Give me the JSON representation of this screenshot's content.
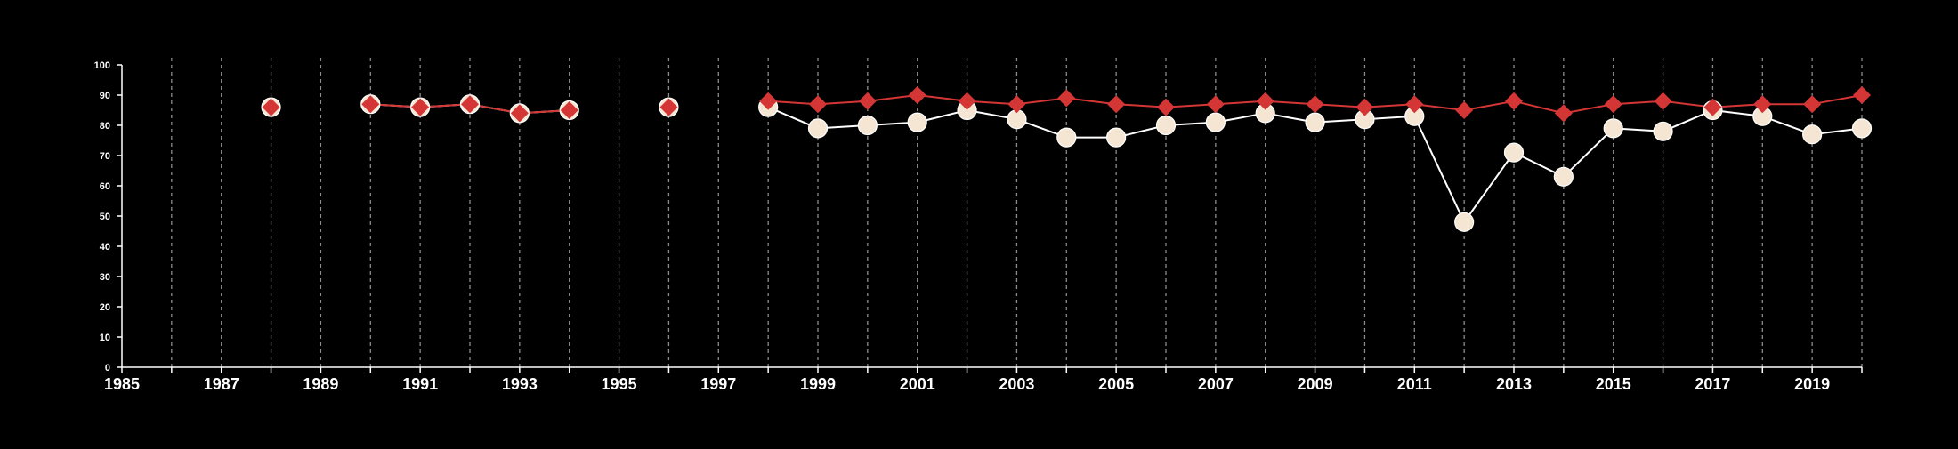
{
  "chart_data": {
    "type": "line",
    "title": "",
    "xlabel": "",
    "ylabel": "",
    "xlim": [
      1985,
      2020
    ],
    "ylim": [
      0,
      100
    ],
    "x_ticks": [
      1985,
      1987,
      1989,
      1991,
      1993,
      1995,
      1997,
      1999,
      2001,
      2003,
      2005,
      2007,
      2009,
      2011,
      2013,
      2015,
      2017,
      2019
    ],
    "y_ticks": [
      0,
      10,
      20,
      30,
      40,
      50,
      60,
      70,
      80,
      90,
      100
    ],
    "x_tick_labels": [
      "1985",
      "1987",
      "1989",
      "1991",
      "1993",
      "1995",
      "1997",
      "1999",
      "2001",
      "2003",
      "2005",
      "2007",
      "2009",
      "2011",
      "2013",
      "2015",
      "2017",
      "2019"
    ],
    "y_tick_labels": [
      "0",
      "10",
      "20",
      "30",
      "40",
      "50",
      "60",
      "70",
      "80",
      "90",
      "100"
    ],
    "vertical_grid": true,
    "vertical_grid_years": [
      1986,
      1987,
      1988,
      1989,
      1990,
      1991,
      1992,
      1993,
      1994,
      1995,
      1996,
      1997,
      1998,
      1999,
      2000,
      2001,
      2002,
      2003,
      2004,
      2005,
      2006,
      2007,
      2008,
      2009,
      2010,
      2011,
      2012,
      2013,
      2014,
      2015,
      2016,
      2017,
      2018,
      2019,
      2020
    ],
    "horizontal_grid": false,
    "legend": "none",
    "background_color": "#000000",
    "axis_color": "#ffffff",
    "series": [
      {
        "marker": "circle",
        "color": "#f5e6d3",
        "line_color": "#ffffff",
        "points": [
          {
            "x": 1988,
            "y": 86
          },
          {
            "x": 1990,
            "y": 87
          },
          {
            "x": 1991,
            "y": 86
          },
          {
            "x": 1992,
            "y": 87
          },
          {
            "x": 1993,
            "y": 84
          },
          {
            "x": 1994,
            "y": 85
          },
          {
            "x": 1996,
            "y": 86
          },
          {
            "x": 1998,
            "y": 86
          },
          {
            "x": 1999,
            "y": 79
          },
          {
            "x": 2000,
            "y": 80
          },
          {
            "x": 2001,
            "y": 81
          },
          {
            "x": 2002,
            "y": 85
          },
          {
            "x": 2003,
            "y": 82
          },
          {
            "x": 2004,
            "y": 76
          },
          {
            "x": 2005,
            "y": 76
          },
          {
            "x": 2006,
            "y": 80
          },
          {
            "x": 2007,
            "y": 81
          },
          {
            "x": 2008,
            "y": 84
          },
          {
            "x": 2009,
            "y": 81
          },
          {
            "x": 2010,
            "y": 82
          },
          {
            "x": 2011,
            "y": 83
          },
          {
            "x": 2012,
            "y": 48
          },
          {
            "x": 2013,
            "y": 71
          },
          {
            "x": 2014,
            "y": 63
          },
          {
            "x": 2015,
            "y": 79
          },
          {
            "x": 2016,
            "y": 78
          },
          {
            "x": 2017,
            "y": 85
          },
          {
            "x": 2018,
            "y": 83
          },
          {
            "x": 2019,
            "y": 77
          },
          {
            "x": 2020,
            "y": 79
          }
        ]
      },
      {
        "marker": "diamond",
        "color": "#d43535",
        "line_color": "#d43535",
        "points": [
          {
            "x": 1988,
            "y": 86
          },
          {
            "x": 1990,
            "y": 87
          },
          {
            "x": 1991,
            "y": 86
          },
          {
            "x": 1992,
            "y": 87
          },
          {
            "x": 1993,
            "y": 84
          },
          {
            "x": 1994,
            "y": 85
          },
          {
            "x": 1996,
            "y": 86
          },
          {
            "x": 1998,
            "y": 88
          },
          {
            "x": 1999,
            "y": 87
          },
          {
            "x": 2000,
            "y": 88
          },
          {
            "x": 2001,
            "y": 90
          },
          {
            "x": 2002,
            "y": 88
          },
          {
            "x": 2003,
            "y": 87
          },
          {
            "x": 2004,
            "y": 89
          },
          {
            "x": 2005,
            "y": 87
          },
          {
            "x": 2006,
            "y": 86
          },
          {
            "x": 2007,
            "y": 87
          },
          {
            "x": 2008,
            "y": 88
          },
          {
            "x": 2009,
            "y": 87
          },
          {
            "x": 2010,
            "y": 86
          },
          {
            "x": 2011,
            "y": 87
          },
          {
            "x": 2012,
            "y": 85
          },
          {
            "x": 2013,
            "y": 88
          },
          {
            "x": 2014,
            "y": 84
          },
          {
            "x": 2015,
            "y": 87
          },
          {
            "x": 2016,
            "y": 88
          },
          {
            "x": 2017,
            "y": 86
          },
          {
            "x": 2018,
            "y": 87
          },
          {
            "x": 2019,
            "y": 87
          },
          {
            "x": 2020,
            "y": 90
          }
        ]
      }
    ]
  }
}
